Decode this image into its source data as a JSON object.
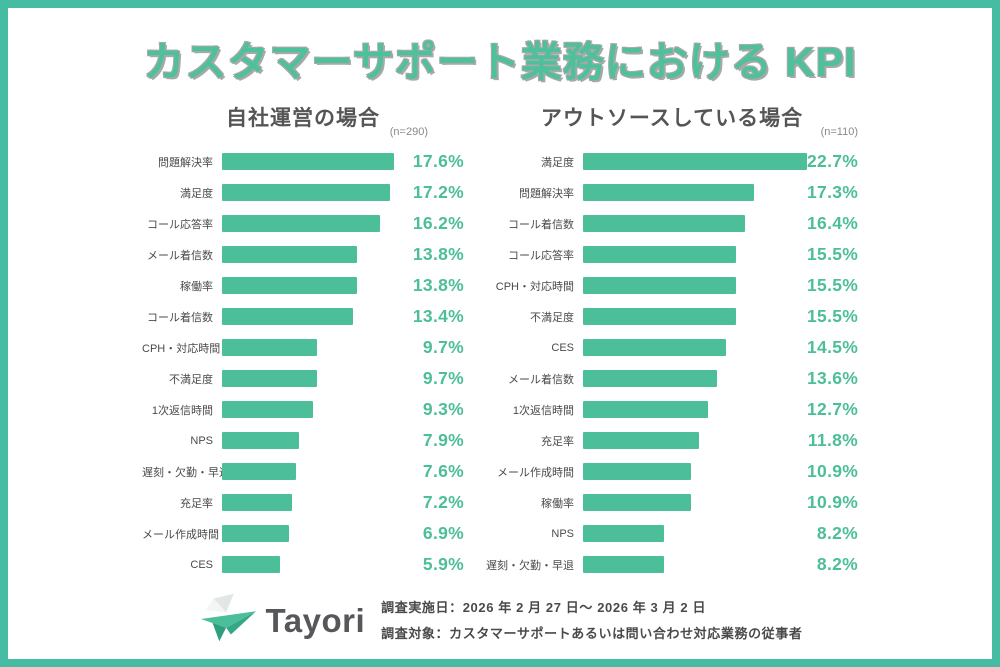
{
  "page": {
    "title": "カスタマーサポート業務における KPI",
    "colors": {
      "accent_green": "#4dbe9a",
      "border_green": "#46bda2",
      "title_green": "#4fc09c",
      "title_outline_gray": "#a8a8a8",
      "label_gray": "#4a4a4a",
      "header_gray": "#555555"
    }
  },
  "chart_data": [
    {
      "type": "bar",
      "orientation": "horizontal",
      "title": "自社運営の場合",
      "subtitle": "(n=290)",
      "bar_color": "#4dbe9a",
      "xlim": [
        0,
        17.6
      ],
      "grid": false,
      "legend": false,
      "categories": [
        "問題解決率",
        "満足度",
        "コール応答率",
        "メール着信数",
        "稼働率",
        "コール着信数",
        "CPH・対応時間",
        "不満足度",
        "1次返信時間",
        "NPS",
        "遅刻・欠勤・早退",
        "充足率",
        "メール作成時間",
        "CES"
      ],
      "values": [
        17.6,
        17.2,
        16.2,
        13.8,
        13.8,
        13.4,
        9.7,
        9.7,
        9.3,
        7.9,
        7.6,
        7.2,
        6.9,
        5.9
      ],
      "value_labels": [
        "17.6%",
        "17.2%",
        "16.2%",
        "13.8%",
        "13.8%",
        "13.4%",
        "9.7%",
        "9.7%",
        "9.3%",
        "7.9%",
        "7.6%",
        "7.2%",
        "6.9%",
        "5.9%"
      ]
    },
    {
      "type": "bar",
      "orientation": "horizontal",
      "title": "アウトソースしている場合",
      "subtitle": "(n=110)",
      "bar_color": "#4dbe9a",
      "xlim": [
        0,
        22.7
      ],
      "grid": false,
      "legend": false,
      "categories": [
        "満足度",
        "問題解決率",
        "コール着信数",
        "コール応答率",
        "CPH・対応時間",
        "不満足度",
        "CES",
        "メール着信数",
        "1次返信時間",
        "充足率",
        "メール作成時間",
        "稼働率",
        "NPS",
        "遅刻・欠勤・早退"
      ],
      "values": [
        22.7,
        17.3,
        16.4,
        15.5,
        15.5,
        15.5,
        14.5,
        13.6,
        12.7,
        11.8,
        10.9,
        10.9,
        8.2,
        8.2
      ],
      "value_labels": [
        "22.7%",
        "17.3%",
        "16.4%",
        "15.5%",
        "15.5%",
        "15.5%",
        "14.5%",
        "13.6%",
        "12.7%",
        "11.8%",
        "10.9%",
        "10.9%",
        "8.2%",
        "8.2%"
      ]
    }
  ],
  "footer": {
    "logo_text": "Tayori",
    "survey_date": "調査実施日：2026 年 2 月 27 日～ 2026 年 3 月 2 日",
    "survey_target": "調査対象：カスタマーサポートあるいは問い合わせ対応業務の従事者"
  }
}
